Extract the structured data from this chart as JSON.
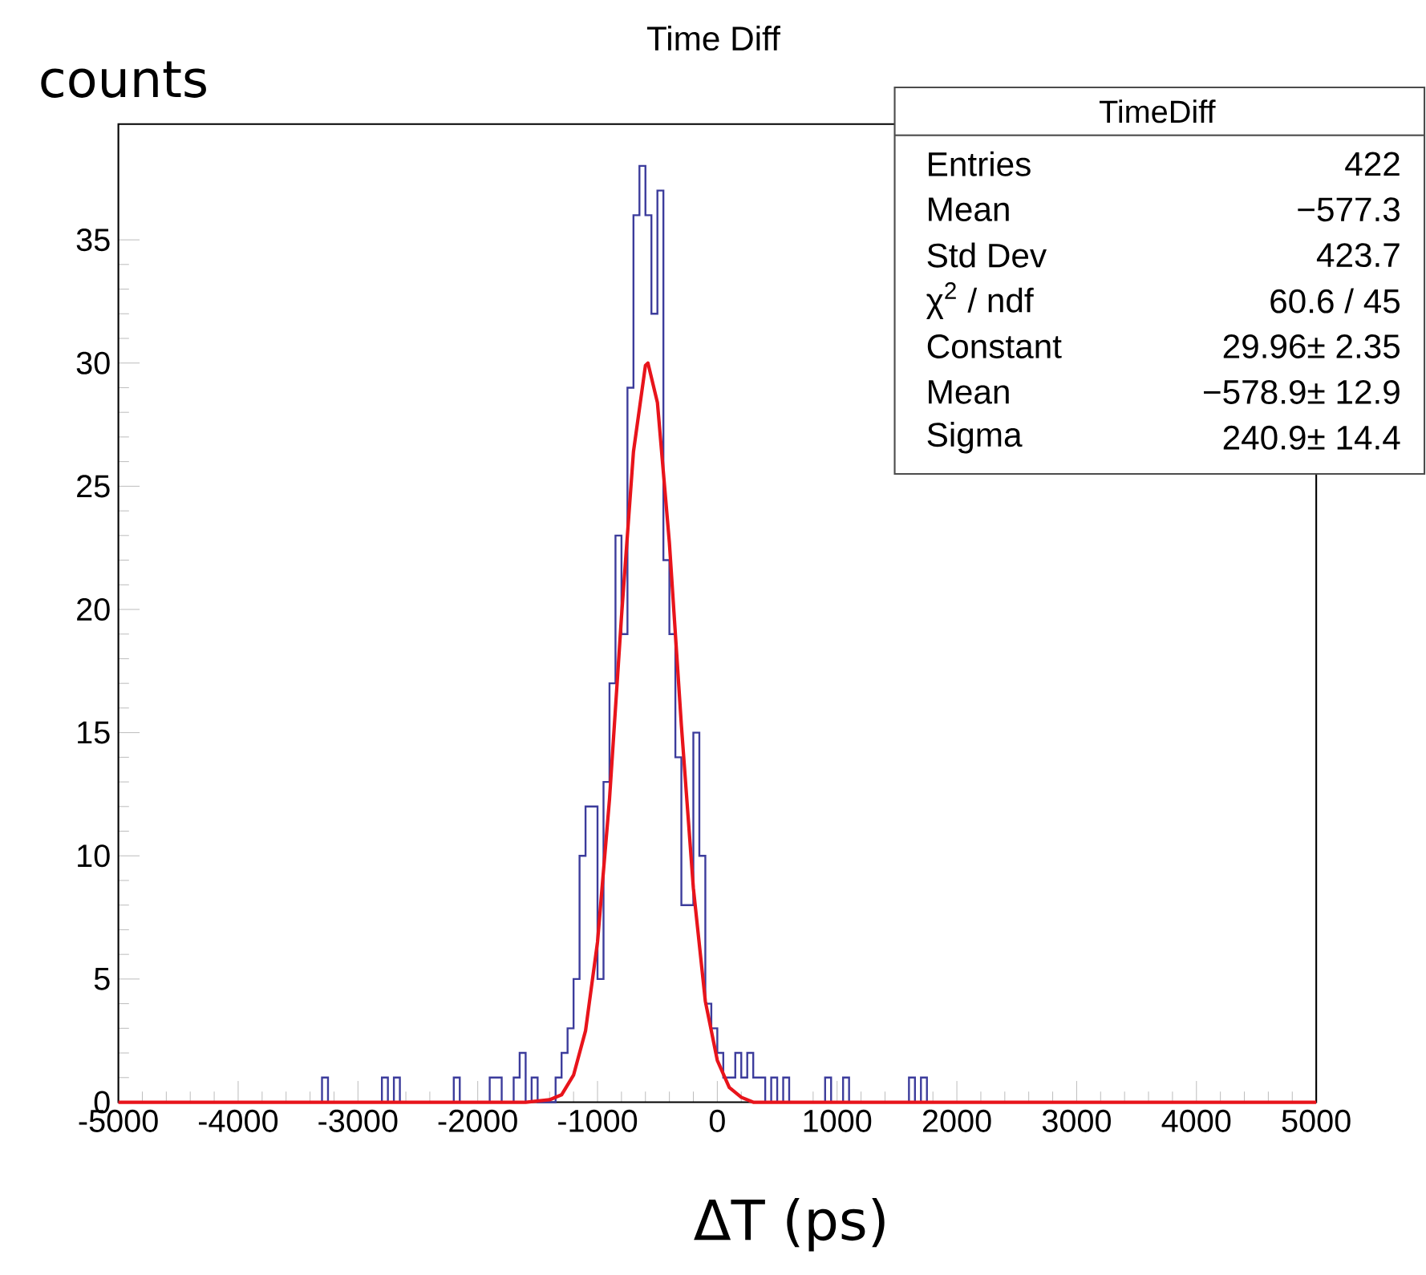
{
  "chart_data": {
    "type": "histogram",
    "title": "Time Diff",
    "xlabel": "ΔT (ps)",
    "ylabel": "counts",
    "bins": [
      -5000,
      -4950,
      -4900,
      -4850,
      -4800,
      -4750,
      -4700,
      -4650,
      -4600,
      -4550,
      -4500,
      -4450,
      -4400,
      -4350,
      -4300,
      -4250,
      -4200,
      -4150,
      -4100,
      -4050,
      -4000,
      -3950,
      -3900,
      -3850,
      -3800,
      -3750,
      -3700,
      -3650,
      -3600,
      -3550,
      -3500,
      -3450,
      -3400,
      -3350,
      -3300,
      -3250,
      -3200,
      -3150,
      -3100,
      -3050,
      -3000,
      -2950,
      -2900,
      -2850,
      -2800,
      -2750,
      -2700,
      -2650,
      -2600,
      -2550,
      -2500,
      -2450,
      -2400,
      -2350,
      -2300,
      -2250,
      -2200,
      -2150,
      -2100,
      -2050,
      -2000,
      -1950,
      -1900,
      -1850,
      -1800,
      -1750,
      -1700,
      -1650,
      -1600,
      -1550,
      -1500,
      -1450,
      -1400,
      -1350,
      -1300,
      -1250,
      -1200,
      -1150,
      -1100,
      -1050,
      -1000,
      -950,
      -900,
      -850,
      -800,
      -750,
      -700,
      -650,
      -600,
      -550,
      -500,
      -450,
      -400,
      -350,
      -300,
      -250,
      -200,
      -150,
      -100,
      -50,
      0,
      50,
      100,
      150,
      200,
      250,
      300,
      350,
      400,
      450,
      500,
      550,
      600,
      650,
      700,
      750,
      800,
      850,
      900,
      950,
      1000,
      1050,
      1100,
      1150,
      1200,
      1250,
      1300,
      1350,
      1400,
      1450,
      1500,
      1550,
      1600,
      1650,
      1700,
      1750,
      1800,
      1850,
      1900,
      1950,
      2000,
      2050,
      2100,
      2150,
      2200,
      2250,
      2300,
      2350,
      2400,
      2450,
      2500,
      2550,
      2600,
      2650,
      2700,
      2750,
      2800,
      2850,
      2900,
      2950,
      3000,
      3050,
      3100,
      3150,
      3200,
      3250,
      3300,
      3350,
      3400,
      3450,
      3500,
      3550,
      3600,
      3650,
      3700,
      3750,
      3800,
      3850,
      3900,
      3950,
      4000,
      4050,
      4100,
      4150,
      4200,
      4250,
      4300,
      4350,
      4400,
      4450,
      4500,
      4550,
      4600,
      4650,
      4700,
      4750,
      4800,
      4850,
      4900,
      4950,
      5000
    ],
    "values": [
      0,
      0,
      0,
      0,
      0,
      0,
      0,
      0,
      0,
      0,
      0,
      0,
      0,
      0,
      0,
      0,
      0,
      0,
      0,
      0,
      0,
      0,
      0,
      0,
      0,
      0,
      0,
      0,
      0,
      0,
      0,
      0,
      0,
      0,
      1,
      0,
      0,
      0,
      0,
      0,
      0,
      0,
      0,
      0,
      1,
      0,
      1,
      0,
      0,
      0,
      0,
      0,
      0,
      0,
      0,
      0,
      1,
      0,
      0,
      0,
      0,
      0,
      1,
      1,
      0,
      0,
      1,
      2,
      0,
      1,
      0,
      0,
      0,
      1,
      2,
      3,
      5,
      10,
      12,
      12,
      5,
      13,
      17,
      23,
      19,
      29,
      36,
      38,
      36,
      32,
      37,
      22,
      19,
      14,
      8,
      8,
      15,
      10,
      4,
      3,
      2,
      1,
      1,
      2,
      1,
      2,
      1,
      1,
      0,
      1,
      0,
      1,
      0,
      0,
      0,
      0,
      0,
      0,
      1,
      0,
      0,
      1,
      0,
      0,
      0,
      0,
      0,
      0,
      0,
      0,
      0,
      0,
      1,
      0,
      1,
      0,
      0,
      0,
      0,
      0,
      0,
      0,
      0,
      0,
      0,
      0,
      0,
      0,
      0,
      0,
      0,
      0,
      0,
      0,
      0,
      0,
      0,
      0,
      0,
      0,
      0,
      0,
      0,
      0,
      0,
      0,
      0,
      0,
      0,
      0,
      0,
      0,
      0,
      0,
      0,
      0,
      0,
      0,
      0,
      0,
      0,
      0,
      0,
      0,
      0,
      0,
      0,
      0,
      0,
      0,
      0,
      0,
      0,
      0,
      0,
      0,
      0,
      0,
      0,
      0
    ],
    "color": "#3c3c9c",
    "series": [
      {
        "type": "line",
        "color": "#e8141b",
        "x": [
          -5000,
          -1600,
          -1400,
          -1300,
          -1200,
          -1100,
          -1000,
          -900,
          -800,
          -700,
          -600,
          -579,
          -500,
          -400,
          -300,
          -200,
          -100,
          0,
          100,
          200,
          300,
          400,
          5000
        ],
        "values": [
          0,
          0,
          0.1,
          0.3,
          1.1,
          2.9,
          6.5,
          12.3,
          19.7,
          26.4,
          29.9,
          30,
          28.4,
          22.7,
          15.3,
          8.7,
          4.1,
          1.7,
          0.6,
          0.2,
          0,
          0,
          0
        ]
      }
    ],
    "xlim": [
      -5000,
      5000
    ],
    "ylim": [
      0,
      39.7
    ],
    "xticks": [
      -5000,
      -4000,
      -3000,
      -2000,
      -1000,
      0,
      1000,
      2000,
      3000,
      4000,
      5000
    ],
    "yticks": [
      0,
      5,
      10,
      15,
      20,
      25,
      30,
      35
    ],
    "grid": false,
    "annotations": [
      "TimeDiff",
      "Entries",
      "422",
      "Mean",
      "−577.3",
      "Std Dev",
      "423.7",
      "χ$^{2}$ / ndf",
      "60.6 / 45",
      "Constant",
      "29.96± 2.35",
      "Mean",
      "−578.9± 12.9",
      "Sigma",
      "240.9± 14.4"
    ]
  }
}
